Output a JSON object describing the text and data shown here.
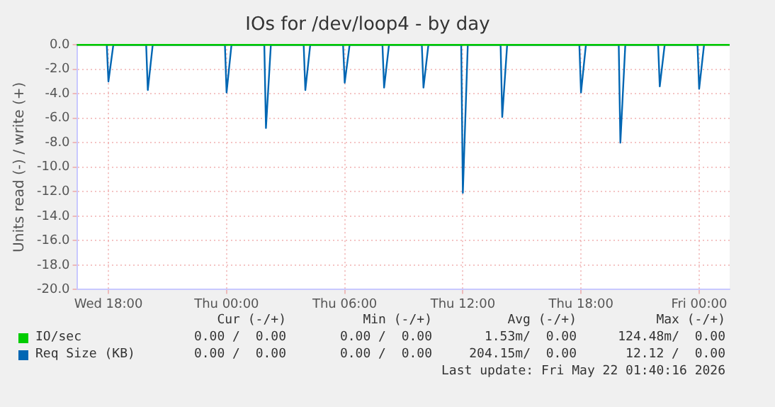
{
  "chart_data": {
    "type": "line",
    "title": "IOs for /dev/loop4 - by day",
    "ylabel": "Units read (-) / write (+)",
    "xlim": [
      "2026-05-20T16:24",
      "2026-05-22T01:33"
    ],
    "xticks": [
      {
        "value": "2026-05-20T18:00",
        "label": "Wed 18:00"
      },
      {
        "value": "2026-05-21T00:00",
        "label": "Thu 00:00"
      },
      {
        "value": "2026-05-21T06:00",
        "label": "Thu 06:00"
      },
      {
        "value": "2026-05-21T12:00",
        "label": "Thu 12:00"
      },
      {
        "value": "2026-05-21T18:00",
        "label": "Thu 18:00"
      },
      {
        "value": "2026-05-22T00:00",
        "label": "Fri 00:00"
      }
    ],
    "ylim": [
      -20,
      0
    ],
    "yticks": [
      {
        "value": 0,
        "label": "0.0"
      },
      {
        "value": -2,
        "label": "-2.0"
      },
      {
        "value": -4,
        "label": "-4.0"
      },
      {
        "value": -6,
        "label": "-6.0"
      },
      {
        "value": -8,
        "label": "-8.0"
      },
      {
        "value": -10,
        "label": "-10.0"
      },
      {
        "value": -12,
        "label": "-12.0"
      },
      {
        "value": -14,
        "label": "-14.0"
      },
      {
        "value": -16,
        "label": "-16.0"
      },
      {
        "value": -18,
        "label": "-18.0"
      },
      {
        "value": -20,
        "label": "-20.0"
      }
    ],
    "grid": true,
    "legend": "bottom",
    "marker": "none",
    "line_style": "solid",
    "series": [
      {
        "name": "IO/sec",
        "color": "#00cc00",
        "x": [
          "2026-05-20T16:24",
          "2026-05-22T01:33"
        ],
        "values": [
          0,
          0
        ]
      },
      {
        "name": "Req Size (KB)",
        "color": "#0066b3",
        "x": [
          "2026-05-20T17:55",
          "2026-05-20T18:00",
          "2026-05-20T18:15",
          "2026-05-20T19:55",
          "2026-05-20T20:00",
          "2026-05-20T20:15",
          "2026-05-20T23:55",
          "2026-05-21T00:00",
          "2026-05-21T00:15",
          "2026-05-21T01:55",
          "2026-05-21T02:00",
          "2026-05-21T02:15",
          "2026-05-21T03:55",
          "2026-05-21T04:00",
          "2026-05-21T04:15",
          "2026-05-21T05:55",
          "2026-05-21T06:00",
          "2026-05-21T06:15",
          "2026-05-21T07:55",
          "2026-05-21T08:00",
          "2026-05-21T08:15",
          "2026-05-21T09:55",
          "2026-05-21T10:00",
          "2026-05-21T10:15",
          "2026-05-21T11:55",
          "2026-05-21T12:00",
          "2026-05-21T12:15",
          "2026-05-21T13:55",
          "2026-05-21T14:00",
          "2026-05-21T14:15",
          "2026-05-21T17:55",
          "2026-05-21T18:00",
          "2026-05-21T18:15",
          "2026-05-21T19:55",
          "2026-05-21T20:00",
          "2026-05-21T20:15",
          "2026-05-21T21:55",
          "2026-05-21T22:00",
          "2026-05-21T22:15",
          "2026-05-21T23:55",
          "2026-05-22T00:00",
          "2026-05-22T00:15"
        ],
        "values": [
          0,
          -3.0,
          0,
          0,
          -3.7,
          0,
          0,
          -3.9,
          0,
          0,
          -6.8,
          0,
          0,
          -3.7,
          0,
          0,
          -3.1,
          0,
          0,
          -3.5,
          0,
          0,
          -3.5,
          0,
          0,
          -12.1,
          0,
          0,
          -5.9,
          0,
          0,
          -3.9,
          0,
          0,
          -8.0,
          0,
          0,
          -3.4,
          0,
          0,
          -3.6,
          0
        ]
      }
    ],
    "annotations": [
      "Cur (-/+)",
      "Min (-/+)",
      "Avg (-/+)",
      "Max (-/+)",
      "0.00 /  0.00",
      "0.00 /  0.00",
      "1.53m/  0.00",
      "124.48m/  0.00",
      "0.00 /  0.00",
      "0.00 /  0.00",
      "204.15m/  0.00",
      "12.12 /  0.00",
      "Last update: Fri May 22 01:40:16 2026"
    ]
  }
}
